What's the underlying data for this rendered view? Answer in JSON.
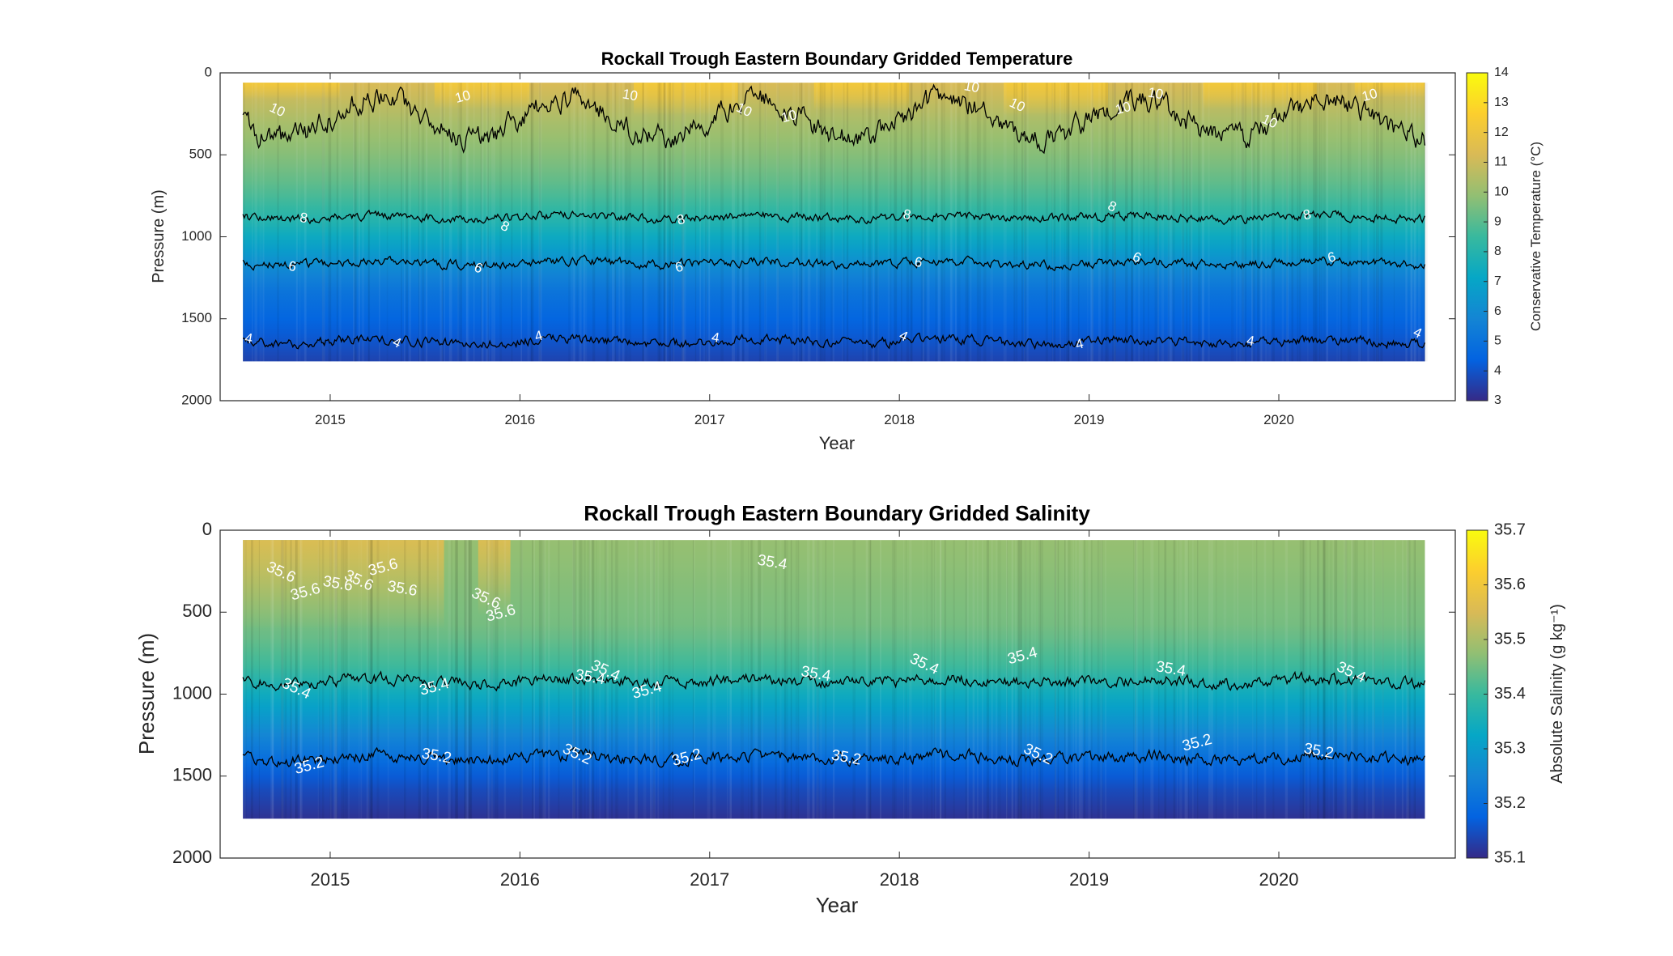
{
  "chart_data": [
    {
      "type": "heatmap",
      "title": "Rockall Trough Eastern Boundary Gridded Temperature",
      "xlabel": "Year",
      "ylabel": "Pressure (m)",
      "x_ticks": [
        "2015",
        "2016",
        "2017",
        "2018",
        "2019",
        "2020"
      ],
      "y_ticks": [
        "0",
        "500",
        "1000",
        "1500",
        "2000"
      ],
      "xlim": [
        2014.42,
        2020.93
      ],
      "ylim": [
        2000,
        0
      ],
      "y_reversed": true,
      "colormap": "parula",
      "colorbar": {
        "label": "Conservative Temperature (°C)",
        "range": [
          3,
          14
        ],
        "ticks": [
          "3",
          "4",
          "5",
          "6",
          "7",
          "8",
          "9",
          "10",
          "11",
          "12",
          "13",
          "14"
        ]
      },
      "data_extent": {
        "x": [
          2014.54,
          2020.77
        ],
        "pressure": [
          60,
          1760
        ]
      },
      "field_profile": [
        {
          "p": 60,
          "v": 11.3
        },
        {
          "p": 300,
          "v": 10.3
        },
        {
          "p": 500,
          "v": 9.7
        },
        {
          "p": 700,
          "v": 9.0
        },
        {
          "p": 900,
          "v": 8.0
        },
        {
          "p": 1000,
          "v": 7.3
        },
        {
          "p": 1150,
          "v": 6.2
        },
        {
          "p": 1300,
          "v": 5.2
        },
        {
          "p": 1500,
          "v": 4.5
        },
        {
          "p": 1650,
          "v": 4.0
        },
        {
          "p": 1760,
          "v": 3.6
        }
      ],
      "contours": [
        {
          "level": "10",
          "mean_pressure": 280,
          "amplitude": 120
        },
        {
          "level": "8",
          "mean_pressure": 880,
          "amplitude": 45
        },
        {
          "level": "6",
          "mean_pressure": 1160,
          "amplitude": 45
        },
        {
          "level": "4",
          "mean_pressure": 1640,
          "amplitude": 50
        }
      ],
      "contour_labels": [
        {
          "text": "10",
          "x": 2014.72,
          "p": 230
        },
        {
          "text": "10",
          "x": 2015.7,
          "p": 150
        },
        {
          "text": "10",
          "x": 2016.58,
          "p": 140
        },
        {
          "text": "10",
          "x": 2017.18,
          "p": 230
        },
        {
          "text": "10",
          "x": 2017.42,
          "p": 270
        },
        {
          "text": "10",
          "x": 2018.38,
          "p": 90
        },
        {
          "text": "10",
          "x": 2018.62,
          "p": 200
        },
        {
          "text": "10",
          "x": 2019.18,
          "p": 220
        },
        {
          "text": "10",
          "x": 2019.35,
          "p": 130
        },
        {
          "text": "10",
          "x": 2019.95,
          "p": 300
        },
        {
          "text": "10",
          "x": 2020.48,
          "p": 140
        },
        {
          "text": "8",
          "x": 2014.86,
          "p": 890
        },
        {
          "text": "8",
          "x": 2015.92,
          "p": 940
        },
        {
          "text": "8",
          "x": 2016.85,
          "p": 900
        },
        {
          "text": "8",
          "x": 2018.04,
          "p": 870
        },
        {
          "text": "8",
          "x": 2019.12,
          "p": 820
        },
        {
          "text": "8",
          "x": 2020.15,
          "p": 870
        },
        {
          "text": "6",
          "x": 2014.8,
          "p": 1185
        },
        {
          "text": "6",
          "x": 2015.78,
          "p": 1195
        },
        {
          "text": "6",
          "x": 2016.84,
          "p": 1190
        },
        {
          "text": "6",
          "x": 2018.1,
          "p": 1160
        },
        {
          "text": "6",
          "x": 2019.25,
          "p": 1130
        },
        {
          "text": "6",
          "x": 2020.28,
          "p": 1130
        },
        {
          "text": "4",
          "x": 2014.57,
          "p": 1625
        },
        {
          "text": "4",
          "x": 2015.35,
          "p": 1650
        },
        {
          "text": "4",
          "x": 2016.1,
          "p": 1610
        },
        {
          "text": "4",
          "x": 2017.03,
          "p": 1620
        },
        {
          "text": "4",
          "x": 2018.02,
          "p": 1610
        },
        {
          "text": "4",
          "x": 2018.95,
          "p": 1660
        },
        {
          "text": "4",
          "x": 2019.85,
          "p": 1640
        },
        {
          "text": "4",
          "x": 2020.73,
          "p": 1590
        }
      ],
      "colors": [
        "#352a87",
        "#0363e1",
        "#1485d4",
        "#06a7c6",
        "#38b99e",
        "#92bf73",
        "#d9ba56",
        "#fcce2e",
        "#f9fb0e"
      ]
    },
    {
      "type": "heatmap",
      "title": "Rockall Trough Eastern Boundary Gridded Salinity",
      "xlabel": "Year",
      "ylabel": "Pressure (m)",
      "x_ticks": [
        "2015",
        "2016",
        "2017",
        "2018",
        "2019",
        "2020"
      ],
      "y_ticks": [
        "0",
        "500",
        "1000",
        "1500",
        "2000"
      ],
      "xlim": [
        2014.42,
        2020.93
      ],
      "ylim": [
        2000,
        0
      ],
      "y_reversed": true,
      "colormap": "parula",
      "colorbar": {
        "label": "Absolute Salinity (g kg⁻¹)",
        "range": [
          35.1,
          35.7
        ],
        "ticks": [
          "35.1",
          "35.2",
          "35.3",
          "35.4",
          "35.5",
          "35.6",
          "35.7"
        ]
      },
      "data_extent": {
        "x": [
          2014.54,
          2020.77
        ],
        "pressure": [
          60,
          1760
        ]
      },
      "field_profile": [
        {
          "p": 60,
          "v": 35.48
        },
        {
          "p": 600,
          "v": 35.45
        },
        {
          "p": 850,
          "v": 35.4
        },
        {
          "p": 1000,
          "v": 35.34
        },
        {
          "p": 1200,
          "v": 35.27
        },
        {
          "p": 1400,
          "v": 35.2
        },
        {
          "p": 1550,
          "v": 35.15
        },
        {
          "p": 1760,
          "v": 35.11
        }
      ],
      "early_high_salinity": {
        "x": [
          2014.54,
          2015.6
        ],
        "value": 35.56
      },
      "contours": [
        {
          "level": "35.4",
          "mean_pressure": 920,
          "amplitude": 60
        },
        {
          "level": "35.2",
          "mean_pressure": 1390,
          "amplitude": 60
        }
      ],
      "contour_labels": [
        {
          "text": "35.6",
          "x": 2014.74,
          "p": 260
        },
        {
          "text": "35.6",
          "x": 2014.87,
          "p": 380
        },
        {
          "text": "35.6",
          "x": 2015.04,
          "p": 330
        },
        {
          "text": "35.6",
          "x": 2015.15,
          "p": 310
        },
        {
          "text": "35.6",
          "x": 2015.28,
          "p": 230
        },
        {
          "text": "35.6",
          "x": 2015.38,
          "p": 360
        },
        {
          "text": "35.6",
          "x": 2015.82,
          "p": 420
        },
        {
          "text": "35.6",
          "x": 2015.9,
          "p": 510
        },
        {
          "text": "35.4",
          "x": 2017.33,
          "p": 200
        },
        {
          "text": "35.4",
          "x": 2014.82,
          "p": 970
        },
        {
          "text": "35.4",
          "x": 2015.55,
          "p": 960
        },
        {
          "text": "35.4",
          "x": 2016.37,
          "p": 900
        },
        {
          "text": "35.4",
          "x": 2016.45,
          "p": 860
        },
        {
          "text": "35.4",
          "x": 2016.67,
          "p": 980
        },
        {
          "text": "35.4",
          "x": 2017.56,
          "p": 880
        },
        {
          "text": "35.4",
          "x": 2018.13,
          "p": 820
        },
        {
          "text": "35.4",
          "x": 2018.65,
          "p": 770
        },
        {
          "text": "35.4",
          "x": 2019.43,
          "p": 850
        },
        {
          "text": "35.4",
          "x": 2020.38,
          "p": 870
        },
        {
          "text": "35.2",
          "x": 2014.89,
          "p": 1440
        },
        {
          "text": "35.2",
          "x": 2015.56,
          "p": 1380
        },
        {
          "text": "35.2",
          "x": 2016.3,
          "p": 1370
        },
        {
          "text": "35.2",
          "x": 2016.88,
          "p": 1390
        },
        {
          "text": "35.2",
          "x": 2017.72,
          "p": 1390
        },
        {
          "text": "35.2",
          "x": 2018.73,
          "p": 1370
        },
        {
          "text": "35.2",
          "x": 2019.57,
          "p": 1300
        },
        {
          "text": "35.2",
          "x": 2020.21,
          "p": 1350
        }
      ],
      "colors": [
        "#352a87",
        "#0363e1",
        "#1485d4",
        "#06a7c6",
        "#38b99e",
        "#92bf73",
        "#d9ba56",
        "#fcce2e",
        "#f9fb0e"
      ]
    }
  ]
}
